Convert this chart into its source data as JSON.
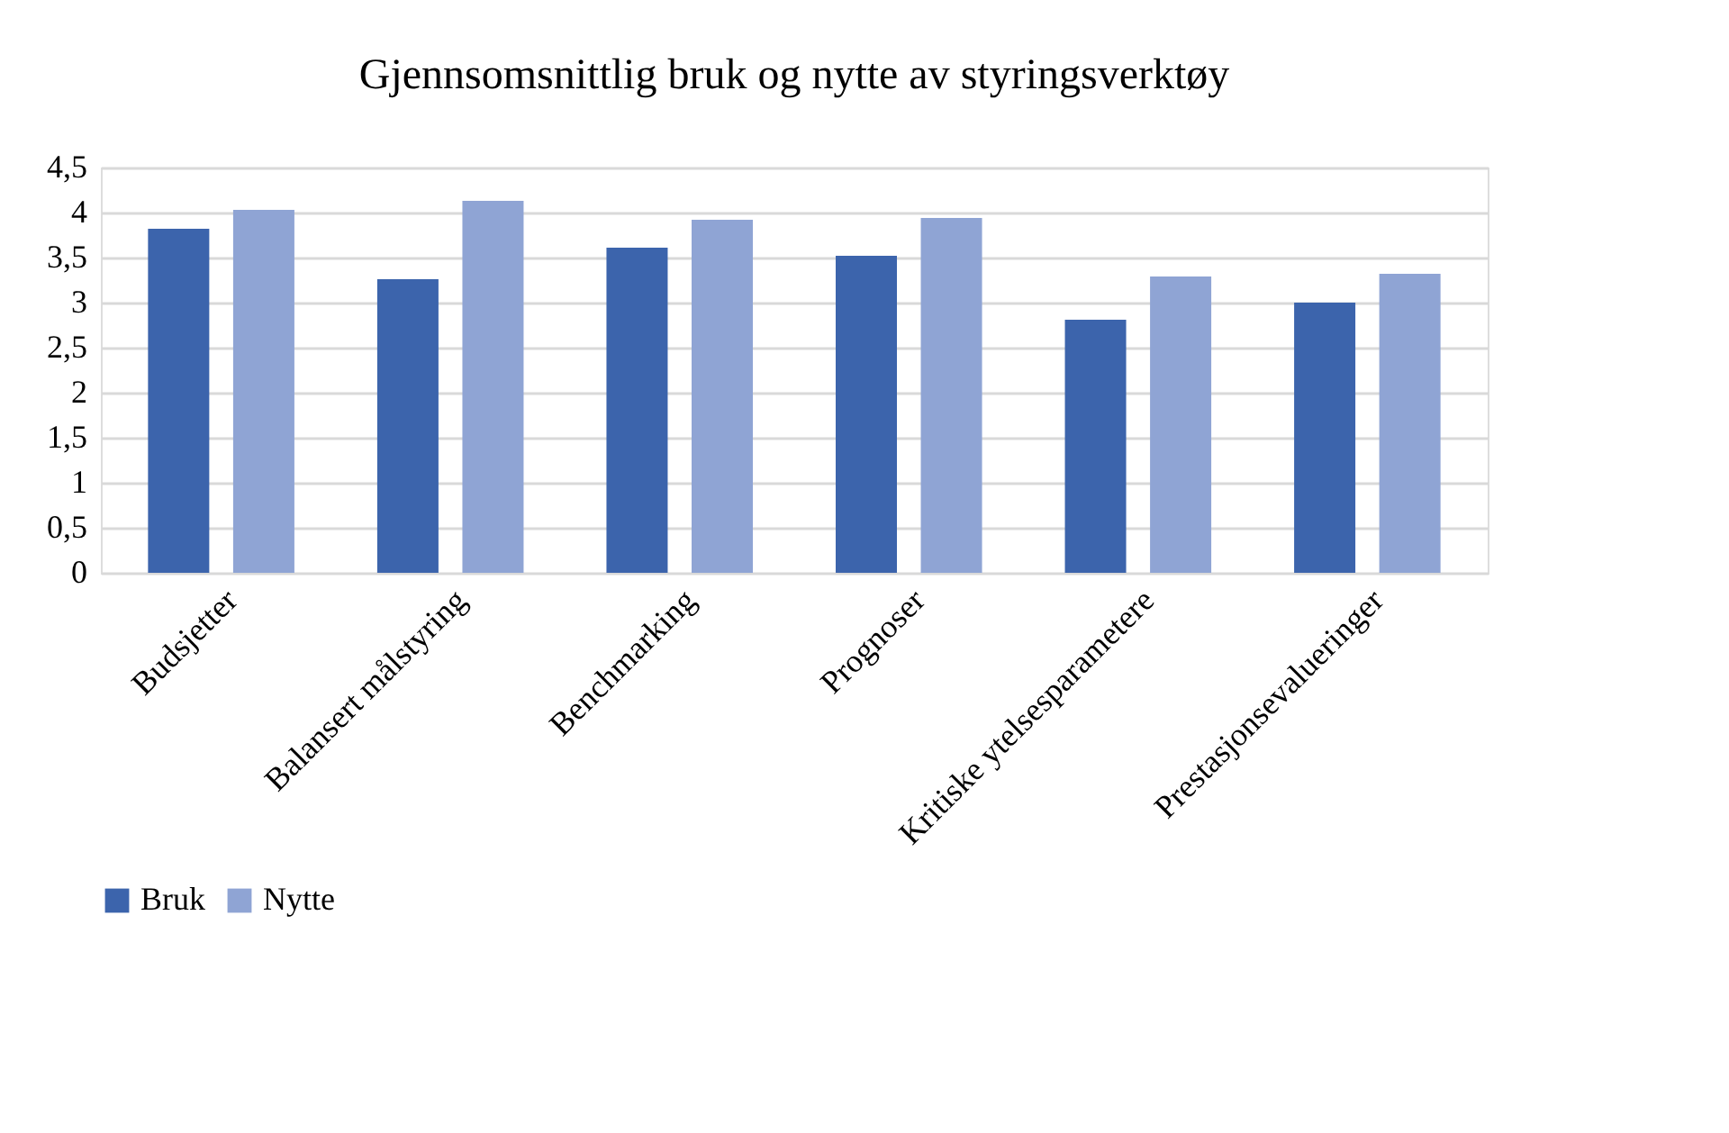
{
  "chart_data": {
    "type": "bar",
    "title": "Gjennsomsnittlig bruk og nytte av styringsverktøy",
    "categories": [
      "Budsjetter",
      "Balansert målstyring",
      "Benchmarking",
      "Prognoser",
      "Kritiske ytelsesparametere",
      "Prestasjonsevalueringer"
    ],
    "series": [
      {
        "name": "Bruk",
        "color": "#3c64ac",
        "values": [
          3.82,
          3.26,
          3.61,
          3.52,
          2.81,
          3.0
        ]
      },
      {
        "name": "Nytte",
        "color": "#8fa4d4",
        "values": [
          4.03,
          4.13,
          3.92,
          3.94,
          3.29,
          3.32
        ]
      }
    ],
    "ylim": [
      0,
      4.5
    ],
    "yticks": [
      0,
      {
        "value": 0.5,
        "label": "0,5"
      },
      1,
      {
        "value": 1.5,
        "label": "1,5"
      },
      2,
      {
        "value": 2.5,
        "label": "2,5"
      },
      3,
      {
        "value": 3.5,
        "label": "3,5"
      },
      4,
      {
        "value": 4.5,
        "label": "4,5"
      }
    ],
    "grid": "y",
    "legend": "bottom"
  }
}
